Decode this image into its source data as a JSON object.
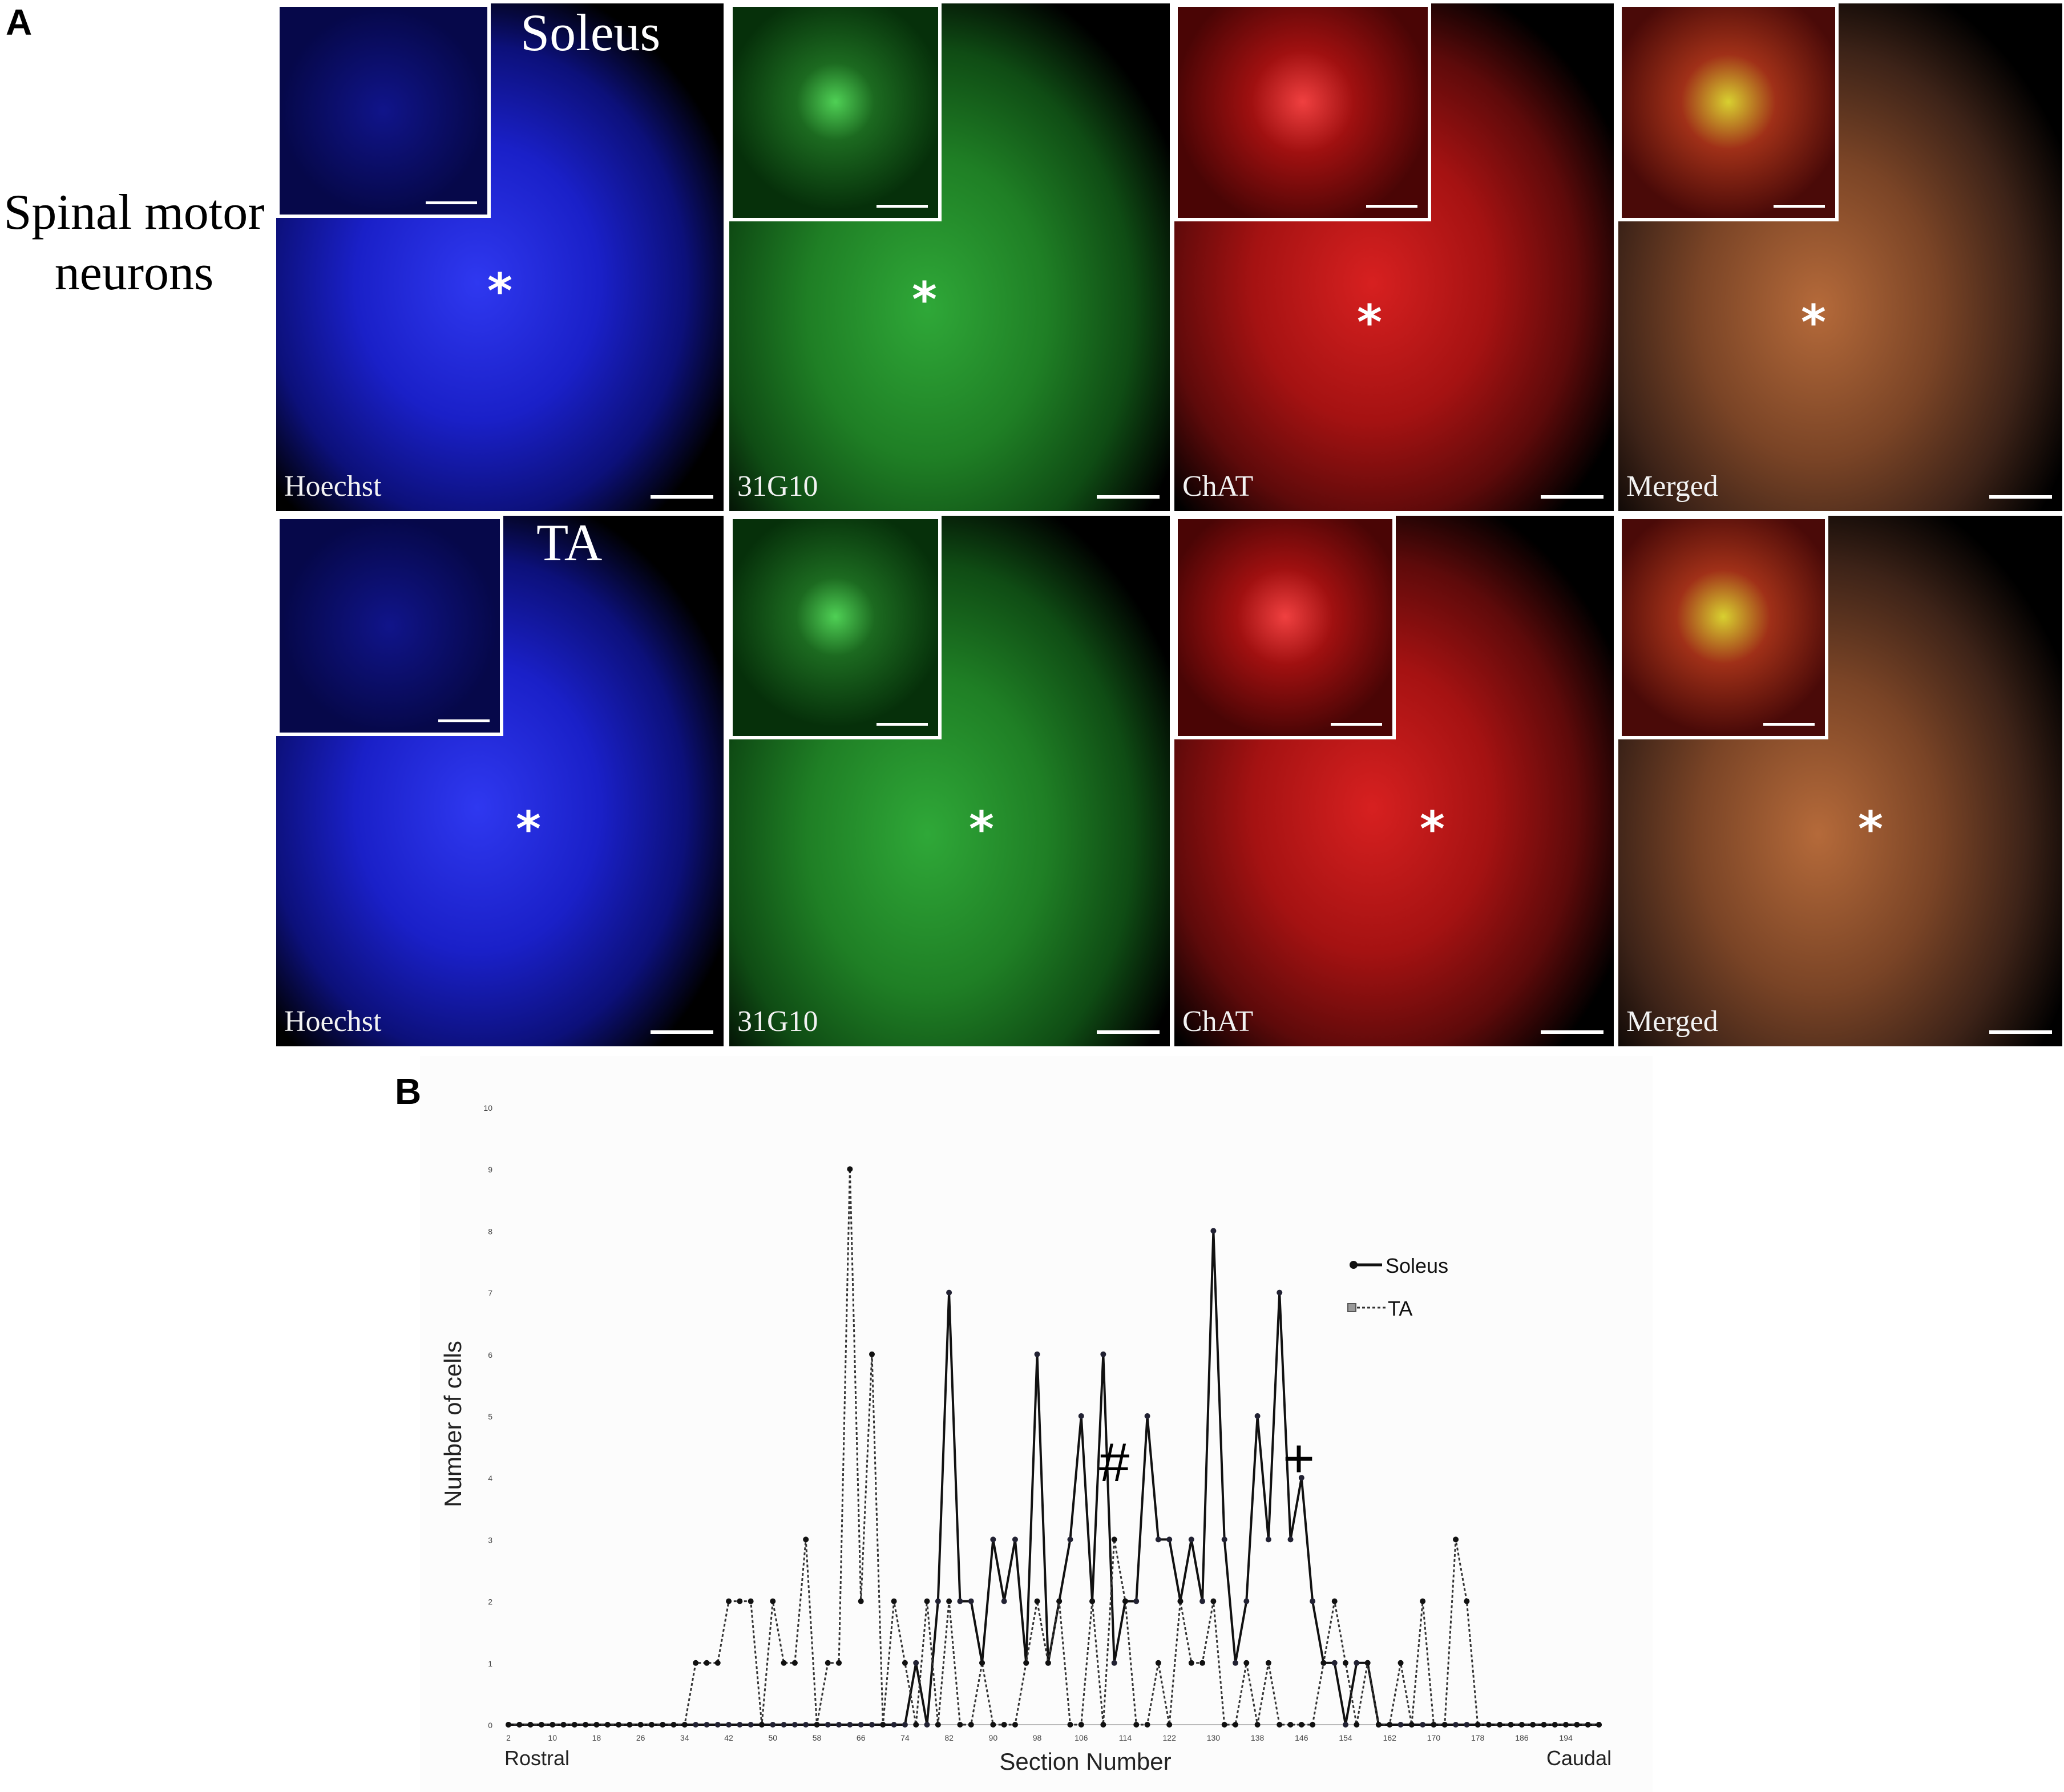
{
  "figure": {
    "panel_a_letter": "A",
    "panel_b_letter": "B",
    "row_label_line1": "Spinal motor",
    "row_label_line2": "neurons",
    "row1_title": "Soleus",
    "row2_title": "TA",
    "asterisk": "*",
    "tiles_row1": [
      {
        "label": "Hoechst",
        "stain": "hoechst"
      },
      {
        "label": "31G10",
        "stain": "g31"
      },
      {
        "label": "ChAT",
        "stain": "chat"
      },
      {
        "label": "Merged",
        "stain": "merged"
      }
    ],
    "tiles_row2": [
      {
        "label": "Hoechst",
        "stain": "hoechst"
      },
      {
        "label": "31G10",
        "stain": "g31"
      },
      {
        "label": "ChAT",
        "stain": "chat"
      },
      {
        "label": "Merged",
        "stain": "merged"
      }
    ],
    "colors": {
      "hoechst": "#1a1fd0",
      "g31": "#1f9c2a",
      "chat": "#c21818",
      "merged": "#8a4a28"
    }
  },
  "chart_data": {
    "type": "line",
    "xlabel": "Section Number",
    "ylabel": "Number of cells",
    "x_left_label": "Rostral",
    "x_right_label": "Caudal",
    "ylim": [
      0,
      10
    ],
    "yticks": [
      0,
      1,
      2,
      3,
      4,
      5,
      6,
      7,
      8,
      9,
      10
    ],
    "xticks": [
      2,
      10,
      18,
      26,
      34,
      42,
      50,
      58,
      66,
      74,
      82,
      90,
      98,
      106,
      114,
      122,
      130,
      138,
      146,
      154,
      162,
      170,
      178,
      186,
      194
    ],
    "x": [
      2,
      4,
      6,
      8,
      10,
      12,
      14,
      16,
      18,
      20,
      22,
      24,
      26,
      28,
      30,
      32,
      34,
      36,
      38,
      40,
      42,
      44,
      46,
      48,
      50,
      52,
      54,
      56,
      58,
      60,
      62,
      64,
      66,
      68,
      70,
      72,
      74,
      76,
      78,
      80,
      82,
      84,
      86,
      88,
      90,
      92,
      94,
      96,
      98,
      100,
      102,
      104,
      106,
      108,
      110,
      112,
      114,
      116,
      118,
      120,
      122,
      124,
      126,
      128,
      130,
      132,
      134,
      136,
      138,
      140,
      142,
      144,
      146,
      148,
      150,
      152,
      154,
      156,
      158,
      160,
      162,
      164,
      166,
      168,
      170,
      172,
      174,
      176,
      178,
      180,
      182,
      184,
      186,
      188,
      190,
      192,
      194,
      196,
      198,
      200
    ],
    "legend_position": "right",
    "annotations": [
      "#",
      "+"
    ],
    "series": [
      {
        "name": "Soleus",
        "style": "solid",
        "values": [
          0,
          0,
          0,
          0,
          0,
          0,
          0,
          0,
          0,
          0,
          0,
          0,
          0,
          0,
          0,
          0,
          0,
          0,
          0,
          0,
          0,
          0,
          0,
          0,
          0,
          0,
          0,
          0,
          0,
          0,
          0,
          0,
          0,
          0,
          0,
          0,
          0,
          1,
          0,
          2,
          7,
          2,
          2,
          1,
          3,
          2,
          3,
          1,
          6,
          1,
          2,
          3,
          5,
          2,
          6,
          1,
          2,
          2,
          5,
          3,
          3,
          2,
          3,
          2,
          8,
          3,
          1,
          2,
          5,
          3,
          7,
          3,
          4,
          2,
          1,
          1,
          0,
          1,
          1,
          0,
          0,
          0,
          0,
          0,
          0,
          0,
          0,
          0,
          0,
          0,
          0,
          0,
          0,
          0,
          0,
          0,
          0,
          0,
          0,
          0
        ]
      },
      {
        "name": "TA",
        "style": "dotted",
        "values": [
          0,
          0,
          0,
          0,
          0,
          0,
          0,
          0,
          0,
          0,
          0,
          0,
          0,
          0,
          0,
          0,
          0,
          1,
          1,
          1,
          2,
          2,
          2,
          0,
          2,
          1,
          1,
          3,
          0,
          1,
          1,
          9,
          2,
          6,
          0,
          2,
          1,
          0,
          2,
          0,
          2,
          0,
          0,
          1,
          0,
          0,
          0,
          1,
          2,
          1,
          2,
          0,
          0,
          2,
          0,
          3,
          2,
          0,
          0,
          1,
          0,
          2,
          1,
          1,
          2,
          0,
          0,
          1,
          0,
          1,
          0,
          0,
          0,
          0,
          1,
          2,
          1,
          0,
          1,
          0,
          0,
          1,
          0,
          2,
          0,
          0,
          3,
          2,
          0,
          0,
          0,
          0,
          0,
          0,
          0,
          0,
          0,
          0,
          0,
          0
        ]
      }
    ]
  }
}
